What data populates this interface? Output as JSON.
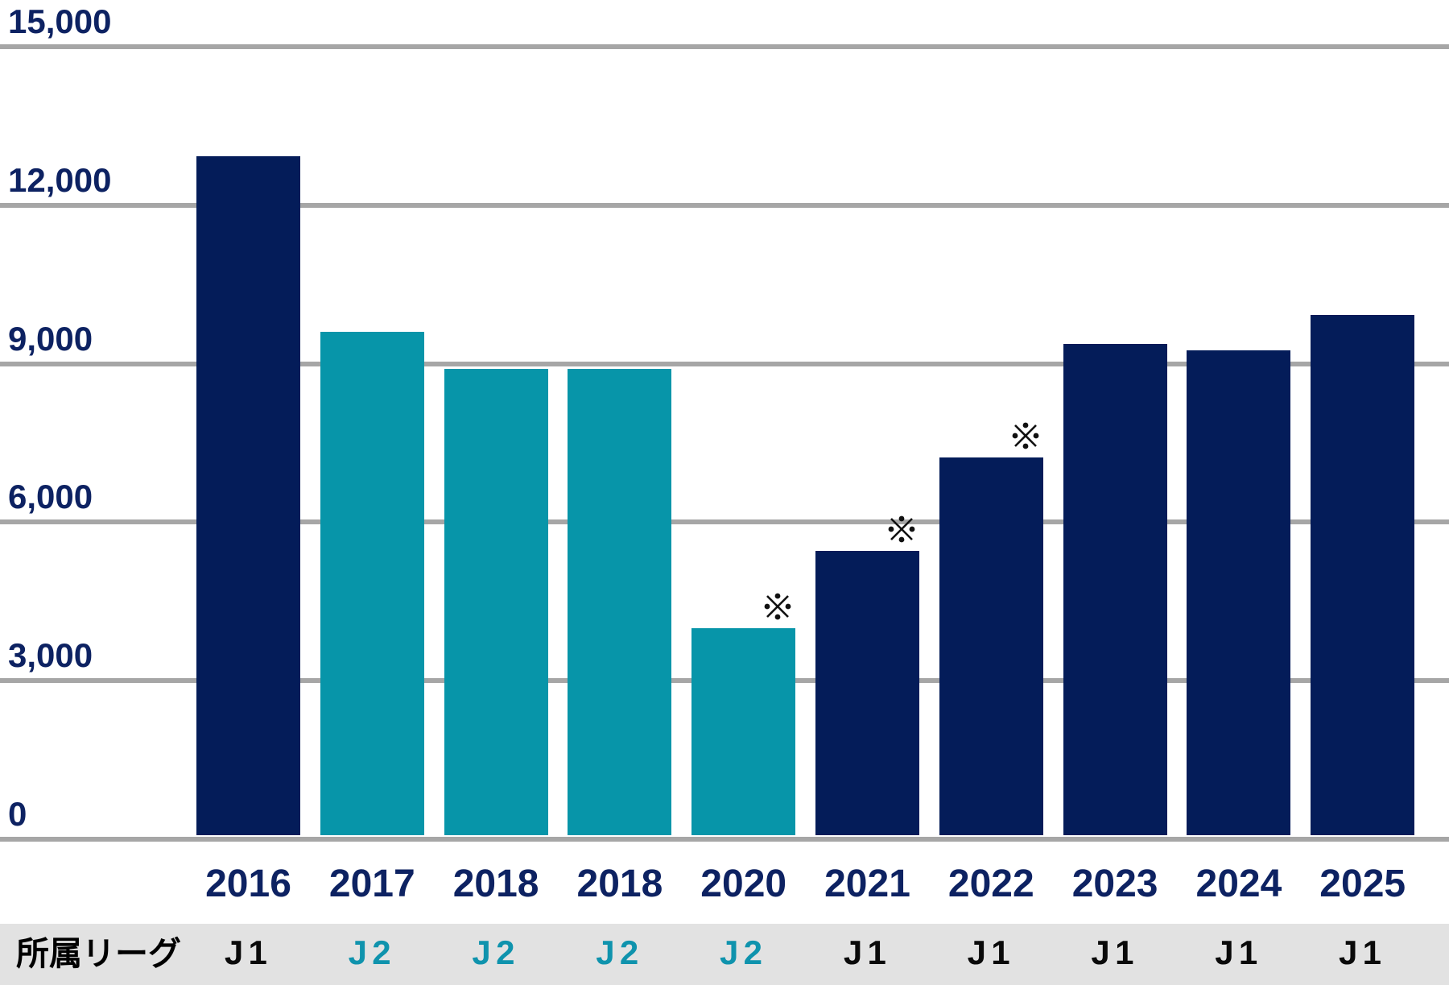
{
  "chart_data": {
    "type": "bar",
    "title": "",
    "xlabel": "",
    "ylabel": "",
    "categories": [
      "2016",
      "2017",
      "2018",
      "2018",
      "2020",
      "2021",
      "2022",
      "2023",
      "2024",
      "2025"
    ],
    "values": [
      12920,
      9600,
      8900,
      8900,
      4000,
      5450,
      7230,
      9370,
      9260,
      9930
    ],
    "leagues": [
      "J1",
      "J2",
      "J2",
      "J2",
      "J2",
      "J1",
      "J1",
      "J1",
      "J1",
      "J1"
    ],
    "annotated": [
      false,
      false,
      false,
      false,
      true,
      true,
      true,
      false,
      false,
      false
    ],
    "annotation_symbol": "※",
    "ylim": [
      0,
      15000
    ],
    "yticks": [
      0,
      3000,
      6000,
      9000,
      12000,
      15000
    ],
    "ytick_labels": [
      "0",
      "3,000",
      "6,000",
      "9,000",
      "12,000",
      "15,000"
    ],
    "grid": true,
    "legend": "none",
    "series_colors": {
      "J1": "#041c59",
      "J2": "#0795a9"
    }
  },
  "league_row": {
    "label": "所属リーグ",
    "values": [
      "J1",
      "J2",
      "J2",
      "J2",
      "J2",
      "J1",
      "J1",
      "J1",
      "J1",
      "J1"
    ]
  },
  "colors": {
    "background": "#ffffff",
    "gridline": "#a6a6a6",
    "axis_text": "#0d2262",
    "band_background": "#e2e2e2",
    "j1_bar": "#041c59",
    "j2_bar": "#0795a9",
    "j1_text": "#0a0a0a",
    "j2_text": "#0f93ad",
    "annotation": "#111111"
  }
}
